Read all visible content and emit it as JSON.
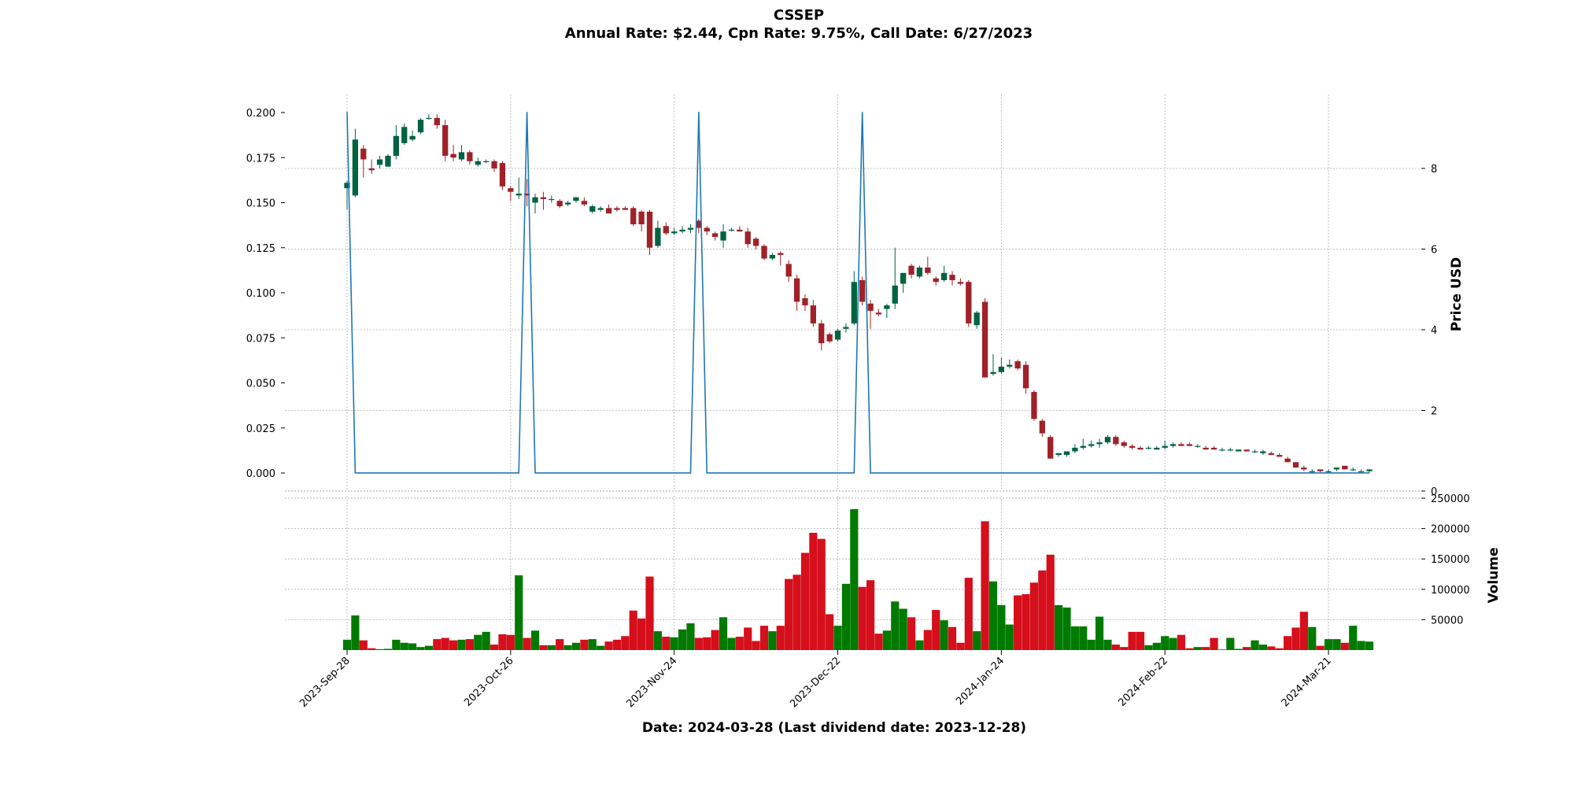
{
  "chart_data": {
    "type": "candlestick",
    "title": "CSSEP",
    "subtitle": "Annual Rate: $2.44, Cpn Rate: 9.75%, Call Date: 6/27/2023",
    "xlabel": "Date: 2024-03-28   (Last dividend date: 2023-12-28)",
    "ylabel_right": "Price USD",
    "ylabel_volume": "Volume",
    "x_tick_labels": [
      "2023-Sep-28",
      "2023-Oct-26",
      "2023-Nov-24",
      "2023-Dec-22",
      "2024-Jan-24",
      "2024-Feb-22",
      "2024-Mar-21"
    ],
    "x_tick_index": [
      0,
      20,
      40,
      60,
      80,
      100,
      120
    ],
    "n_bars": 126,
    "left_axis": {
      "ticks": [
        "0.000",
        "0.025",
        "0.050",
        "0.075",
        "0.100",
        "0.125",
        "0.150",
        "0.175",
        "0.200"
      ],
      "ylim": [
        -0.01,
        0.21
      ]
    },
    "right_axis": {
      "ticks": [
        "0",
        "2",
        "4",
        "6",
        "8"
      ],
      "ylim": [
        0,
        9.6
      ]
    },
    "volume_axis": {
      "ticks": [
        "50000",
        "100000",
        "150000",
        "200000",
        "250000"
      ],
      "ylim": [
        0,
        250000
      ]
    },
    "up_color": "#006340",
    "down_color": "#a02128",
    "vol_up_color": "#007a00",
    "vol_down_color": "#d50f1b",
    "line_color": "#1f77b4",
    "grid": true,
    "line_series": {
      "name": "",
      "points": [
        [
          0,
          9.4
        ],
        [
          1,
          0.45
        ],
        [
          21,
          0.45
        ],
        [
          22,
          9.4
        ],
        [
          23,
          0.45
        ],
        [
          42,
          0.45
        ],
        [
          43,
          9.4
        ],
        [
          44,
          0.45
        ],
        [
          62,
          0.45
        ],
        [
          63,
          9.4
        ],
        [
          64,
          0.45
        ],
        [
          125,
          0.45
        ]
      ]
    },
    "candles": [
      [
        0.158,
        0.162,
        0.146,
        0.161
      ],
      [
        0.154,
        0.191,
        0.153,
        0.185
      ],
      [
        0.18,
        0.182,
        0.164,
        0.174
      ],
      [
        0.169,
        0.174,
        0.166,
        0.168
      ],
      [
        0.171,
        0.176,
        0.169,
        0.174
      ],
      [
        0.17,
        0.177,
        0.17,
        0.176
      ],
      [
        0.176,
        0.193,
        0.174,
        0.187
      ],
      [
        0.183,
        0.194,
        0.182,
        0.192
      ],
      [
        0.185,
        0.19,
        0.184,
        0.187
      ],
      [
        0.189,
        0.197,
        0.188,
        0.196
      ],
      [
        0.197,
        0.199,
        0.196,
        0.197
      ],
      [
        0.197,
        0.199,
        0.191,
        0.193
      ],
      [
        0.193,
        0.196,
        0.173,
        0.176
      ],
      [
        0.177,
        0.182,
        0.173,
        0.175
      ],
      [
        0.174,
        0.182,
        0.173,
        0.178
      ],
      [
        0.178,
        0.179,
        0.171,
        0.173
      ],
      [
        0.171,
        0.175,
        0.17,
        0.173
      ],
      [
        0.173,
        0.174,
        0.172,
        0.173
      ],
      [
        0.173,
        0.174,
        0.167,
        0.169
      ],
      [
        0.172,
        0.173,
        0.157,
        0.159
      ],
      [
        0.158,
        0.159,
        0.151,
        0.156
      ],
      [
        0.154,
        0.164,
        0.152,
        0.155
      ],
      [
        0.155,
        0.163,
        0.148,
        0.154
      ],
      [
        0.15,
        0.155,
        0.144,
        0.153
      ],
      [
        0.153,
        0.156,
        0.146,
        0.152
      ],
      [
        0.152,
        0.154,
        0.15,
        0.152
      ],
      [
        0.151,
        0.152,
        0.147,
        0.148
      ],
      [
        0.149,
        0.151,
        0.148,
        0.15
      ],
      [
        0.151,
        0.153,
        0.15,
        0.153
      ],
      [
        0.151,
        0.153,
        0.148,
        0.149
      ],
      [
        0.145,
        0.149,
        0.144,
        0.148
      ],
      [
        0.146,
        0.148,
        0.145,
        0.147
      ],
      [
        0.147,
        0.149,
        0.145,
        0.144
      ],
      [
        0.147,
        0.148,
        0.145,
        0.146
      ],
      [
        0.147,
        0.148,
        0.146,
        0.146
      ],
      [
        0.147,
        0.148,
        0.137,
        0.138
      ],
      [
        0.145,
        0.146,
        0.134,
        0.138
      ],
      [
        0.145,
        0.146,
        0.121,
        0.125
      ],
      [
        0.126,
        0.14,
        0.125,
        0.136
      ],
      [
        0.137,
        0.139,
        0.132,
        0.133
      ],
      [
        0.133,
        0.136,
        0.132,
        0.134
      ],
      [
        0.134,
        0.137,
        0.133,
        0.135
      ],
      [
        0.135,
        0.138,
        0.133,
        0.136
      ],
      [
        0.14,
        0.141,
        0.133,
        0.136
      ],
      [
        0.136,
        0.137,
        0.132,
        0.134
      ],
      [
        0.133,
        0.134,
        0.129,
        0.131
      ],
      [
        0.129,
        0.138,
        0.125,
        0.134
      ],
      [
        0.135,
        0.136,
        0.134,
        0.135
      ],
      [
        0.135,
        0.137,
        0.134,
        0.134
      ],
      [
        0.134,
        0.136,
        0.125,
        0.127
      ],
      [
        0.13,
        0.131,
        0.124,
        0.126
      ],
      [
        0.126,
        0.127,
        0.118,
        0.119
      ],
      [
        0.119,
        0.122,
        0.118,
        0.121
      ],
      [
        0.122,
        0.123,
        0.115,
        0.121
      ],
      [
        0.116,
        0.118,
        0.106,
        0.109
      ],
      [
        0.108,
        0.11,
        0.09,
        0.095
      ],
      [
        0.097,
        0.099,
        0.09,
        0.093
      ],
      [
        0.093,
        0.096,
        0.081,
        0.083
      ],
      [
        0.083,
        0.085,
        0.068,
        0.072
      ],
      [
        0.077,
        0.078,
        0.072,
        0.073
      ],
      [
        0.074,
        0.08,
        0.073,
        0.079
      ],
      [
        0.08,
        0.083,
        0.078,
        0.081
      ],
      [
        0.083,
        0.112,
        0.082,
        0.106
      ],
      [
        0.107,
        0.109,
        0.093,
        0.095
      ],
      [
        0.094,
        0.096,
        0.08,
        0.09
      ],
      [
        0.089,
        0.091,
        0.087,
        0.088
      ],
      [
        0.091,
        0.094,
        0.086,
        0.093
      ],
      [
        0.094,
        0.125,
        0.091,
        0.104
      ],
      [
        0.105,
        0.111,
        0.1,
        0.111
      ],
      [
        0.115,
        0.116,
        0.108,
        0.11
      ],
      [
        0.109,
        0.115,
        0.108,
        0.114
      ],
      [
        0.114,
        0.12,
        0.11,
        0.111
      ],
      [
        0.108,
        0.109,
        0.104,
        0.106
      ],
      [
        0.107,
        0.115,
        0.106,
        0.111
      ],
      [
        0.11,
        0.112,
        0.104,
        0.107
      ],
      [
        0.106,
        0.108,
        0.104,
        0.105
      ],
      [
        0.106,
        0.107,
        0.081,
        0.083
      ],
      [
        0.082,
        0.09,
        0.08,
        0.089
      ],
      [
        0.095,
        0.097,
        0.053,
        0.053
      ],
      [
        0.055,
        0.066,
        0.054,
        0.056
      ],
      [
        0.056,
        0.064,
        0.055,
        0.059
      ],
      [
        0.059,
        0.063,
        0.058,
        0.06
      ],
      [
        0.062,
        0.063,
        0.057,
        0.058
      ],
      [
        0.06,
        0.062,
        0.044,
        0.047
      ],
      [
        0.045,
        0.046,
        0.029,
        0.03
      ],
      [
        0.029,
        0.03,
        0.02,
        0.022
      ],
      [
        0.02,
        0.021,
        0.008,
        0.008
      ],
      [
        0.01,
        0.011,
        0.009,
        0.011
      ],
      [
        0.01,
        0.012,
        0.009,
        0.012
      ],
      [
        0.012,
        0.016,
        0.011,
        0.014
      ],
      [
        0.014,
        0.019,
        0.013,
        0.015
      ],
      [
        0.015,
        0.018,
        0.014,
        0.016
      ],
      [
        0.016,
        0.019,
        0.014,
        0.017
      ],
      [
        0.017,
        0.021,
        0.016,
        0.02
      ],
      [
        0.02,
        0.021,
        0.015,
        0.016
      ],
      [
        0.017,
        0.018,
        0.014,
        0.015
      ],
      [
        0.015,
        0.016,
        0.013,
        0.014
      ],
      [
        0.014,
        0.015,
        0.013,
        0.013
      ],
      [
        0.014,
        0.015,
        0.013,
        0.014
      ],
      [
        0.013,
        0.015,
        0.013,
        0.014
      ],
      [
        0.014,
        0.018,
        0.013,
        0.015
      ],
      [
        0.015,
        0.017,
        0.014,
        0.016
      ],
      [
        0.016,
        0.017,
        0.015,
        0.015
      ],
      [
        0.016,
        0.017,
        0.015,
        0.015
      ],
      [
        0.015,
        0.016,
        0.014,
        0.015
      ],
      [
        0.014,
        0.015,
        0.013,
        0.013
      ],
      [
        0.014,
        0.015,
        0.013,
        0.013
      ],
      [
        0.013,
        0.014,
        0.012,
        0.013
      ],
      [
        0.013,
        0.014,
        0.012,
        0.013
      ],
      [
        0.012,
        0.013,
        0.012,
        0.013
      ],
      [
        0.013,
        0.013,
        0.012,
        0.012
      ],
      [
        0.012,
        0.013,
        0.011,
        0.012
      ],
      [
        0.011,
        0.013,
        0.01,
        0.012
      ],
      [
        0.011,
        0.012,
        0.01,
        0.01
      ],
      [
        0.01,
        0.011,
        0.009,
        0.009
      ],
      [
        0.008,
        0.009,
        0.006,
        0.006
      ],
      [
        0.006,
        0.006,
        0.003,
        0.003
      ],
      [
        0.003,
        0.004,
        0.001,
        0.002
      ],
      [
        0.001,
        0.002,
        0.0,
        0.001
      ],
      [
        0.002,
        0.002,
        0.0,
        0.001
      ],
      [
        0.001,
        0.002,
        0.0,
        0.001
      ],
      [
        0.002,
        0.003,
        0.001,
        0.003
      ],
      [
        0.004,
        0.004,
        0.002,
        0.002
      ],
      [
        0.002,
        0.003,
        0.001,
        0.002
      ],
      [
        0.001,
        0.002,
        0.001,
        0.001
      ],
      [
        0.001,
        0.002,
        0.0,
        0.002
      ]
    ],
    "volume": [
      17000,
      57000,
      16000,
      3000,
      1500,
      2000,
      17000,
      12000,
      11000,
      5000,
      7000,
      18000,
      20000,
      16000,
      17000,
      18000,
      25000,
      30000,
      9000,
      26000,
      25000,
      123000,
      20000,
      32000,
      8000,
      8000,
      18000,
      8000,
      12000,
      17000,
      18000,
      7000,
      14000,
      17000,
      23000,
      65000,
      52000,
      121000,
      31000,
      22000,
      21000,
      34000,
      44000,
      20000,
      21000,
      33000,
      54000,
      20000,
      22000,
      37000,
      15000,
      40000,
      31000,
      40000,
      117000,
      124000,
      160000,
      193000,
      183000,
      59000,
      40000,
      109000,
      232000,
      104000,
      115000,
      27000,
      32000,
      80000,
      68000,
      54000,
      16000,
      33000,
      66000,
      49000,
      38000,
      12000,
      119000,
      31000,
      212000,
      113000,
      74000,
      42000,
      90000,
      92000,
      111000,
      131000,
      157000,
      74000,
      70000,
      39000,
      39000,
      17000,
      55000,
      17000,
      9000,
      5000,
      30000,
      30000,
      8000,
      12000,
      23000,
      20000,
      25000,
      3000,
      5000,
      5000,
      20000,
      1000,
      20000,
      2000,
      5000,
      16000,
      9000,
      6000,
      3000,
      23000,
      37000,
      63000,
      38000,
      7000,
      18000,
      18000,
      12000,
      40000,
      15000,
      14000
    ]
  }
}
